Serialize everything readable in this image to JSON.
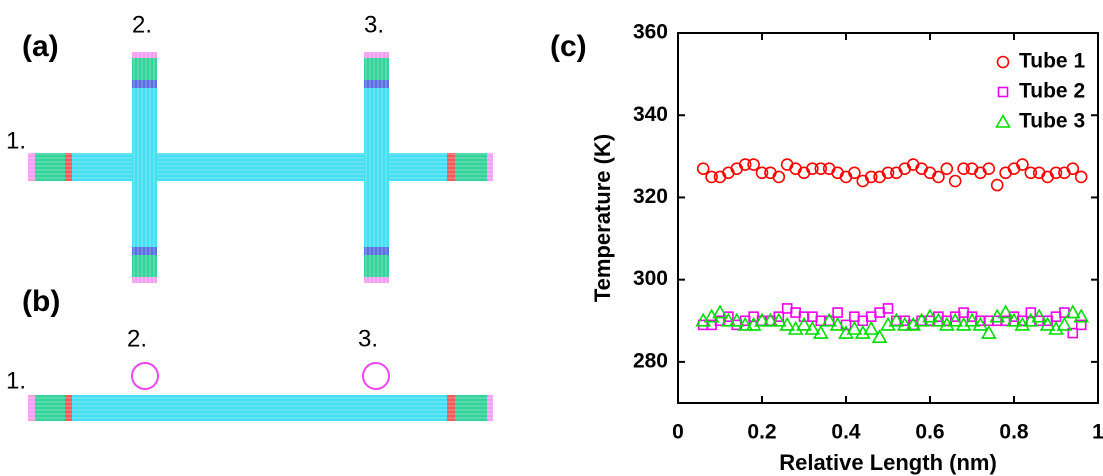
{
  "panel_labels": [
    "(a)",
    "(b)",
    "(c)"
  ],
  "diagram_a": {
    "tube_labels": [
      "1.",
      "2.",
      "3."
    ]
  },
  "diagram_b": {
    "tube_labels": [
      "1.",
      "2.",
      "3."
    ]
  },
  "chart_data": {
    "type": "scatter",
    "xlabel": "Relative Length (nm)",
    "ylabel": "Temperature (K)",
    "xlim": [
      0,
      1
    ],
    "ylim": [
      270,
      360
    ],
    "xticks": [
      0,
      0.2,
      0.4,
      0.6,
      0.8,
      1
    ],
    "yticks": [
      280,
      300,
      320,
      340,
      360
    ],
    "legend": "upper right",
    "x": [
      0.06,
      0.08,
      0.1,
      0.12,
      0.14,
      0.16,
      0.18,
      0.2,
      0.22,
      0.24,
      0.26,
      0.28,
      0.3,
      0.32,
      0.34,
      0.36,
      0.38,
      0.4,
      0.42,
      0.44,
      0.46,
      0.48,
      0.5,
      0.52,
      0.54,
      0.56,
      0.58,
      0.6,
      0.62,
      0.64,
      0.66,
      0.68,
      0.7,
      0.72,
      0.74,
      0.76,
      0.78,
      0.8,
      0.82,
      0.84,
      0.86,
      0.88,
      0.9,
      0.92,
      0.94,
      0.96
    ],
    "series": [
      {
        "name": "Tube 1",
        "color": "#ff0000",
        "marker": "circle",
        "values": [
          327,
          325,
          325,
          326,
          327,
          328,
          328,
          326,
          326,
          325,
          328,
          327,
          326,
          327,
          327,
          327,
          326,
          325,
          326,
          324,
          325,
          325,
          326,
          326,
          327,
          328,
          327,
          326,
          325,
          327,
          324,
          327,
          327,
          326,
          327,
          323,
          326,
          327,
          328,
          326,
          326,
          325,
          326,
          326,
          327,
          325
        ]
      },
      {
        "name": "Tube 2",
        "color": "#ee00ee",
        "marker": "square",
        "values": [
          289,
          289,
          290,
          291,
          289,
          290,
          291,
          290,
          290,
          291,
          293,
          292,
          291,
          291,
          290,
          290,
          292,
          289,
          291,
          290,
          291,
          292,
          293,
          290,
          290,
          289,
          290,
          290,
          291,
          290,
          291,
          292,
          291,
          290,
          290,
          290,
          290,
          291,
          290,
          292,
          290,
          290,
          291,
          292,
          287,
          289
        ]
      },
      {
        "name": "Tube 3",
        "color": "#00dd00",
        "marker": "triangle",
        "values": [
          290,
          291,
          292,
          290,
          290,
          289,
          289,
          290,
          290,
          290,
          289,
          288,
          289,
          288,
          287,
          290,
          289,
          287,
          288,
          287,
          288,
          286,
          289,
          290,
          289,
          289,
          290,
          291,
          290,
          289,
          290,
          289,
          290,
          289,
          287,
          291,
          292,
          290,
          289,
          290,
          291,
          289,
          288,
          289,
          292,
          291
        ]
      }
    ]
  }
}
